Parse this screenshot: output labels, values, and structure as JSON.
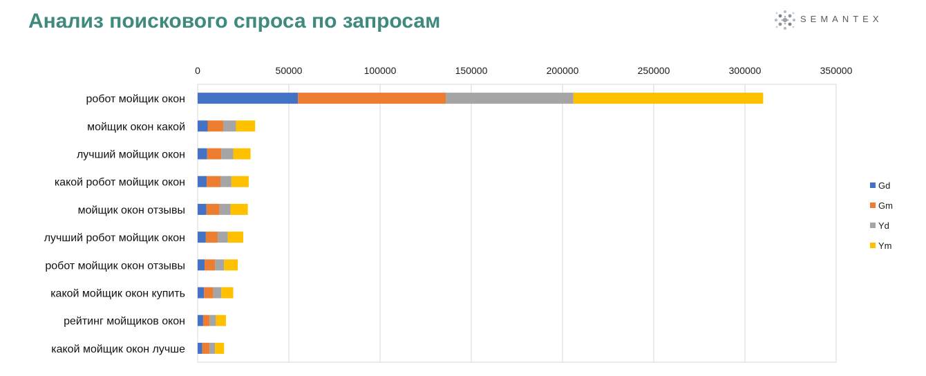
{
  "header": {
    "title": "Анализ поискового спроса по запросам",
    "logo_text": "SEMANTEX"
  },
  "chart_data": {
    "type": "bar",
    "orientation": "horizontal",
    "stacked": true,
    "x_ticks": [
      "0",
      "50000",
      "100000",
      "150000",
      "200000",
      "250000",
      "300000",
      "350000"
    ],
    "xlim": [
      0,
      350000
    ],
    "x_axis_position": "top",
    "grid": true,
    "legend_position": "right",
    "categories": [
      "робот мойщик окон",
      "мойщик окон какой",
      "лучший мойщик окон",
      "какой робот мойщик окон",
      "мойщик окон отзывы",
      "лучший робот мойщик окон",
      "робот мойщик окон отзывы",
      "какой мойщик окон купить",
      "рейтинг мойщиков окон",
      "какой мойщик окон лучше"
    ],
    "series": [
      {
        "name": "Gd",
        "color": "#4472c4",
        "values": [
          55000,
          5500,
          5200,
          5000,
          4800,
          4500,
          3800,
          3500,
          3000,
          2500
        ]
      },
      {
        "name": "Gm",
        "color": "#ed7d31",
        "values": [
          81000,
          8500,
          7800,
          7500,
          7200,
          6500,
          5700,
          5000,
          3500,
          4000
        ]
      },
      {
        "name": "Yd",
        "color": "#a5a5a5",
        "values": [
          70000,
          7000,
          6500,
          6000,
          6000,
          5500,
          5000,
          4500,
          3500,
          3000
        ]
      },
      {
        "name": "Ym",
        "color": "#ffc000",
        "values": [
          104000,
          10500,
          9500,
          9500,
          9500,
          8500,
          7500,
          6500,
          5500,
          5000
        ]
      }
    ]
  }
}
